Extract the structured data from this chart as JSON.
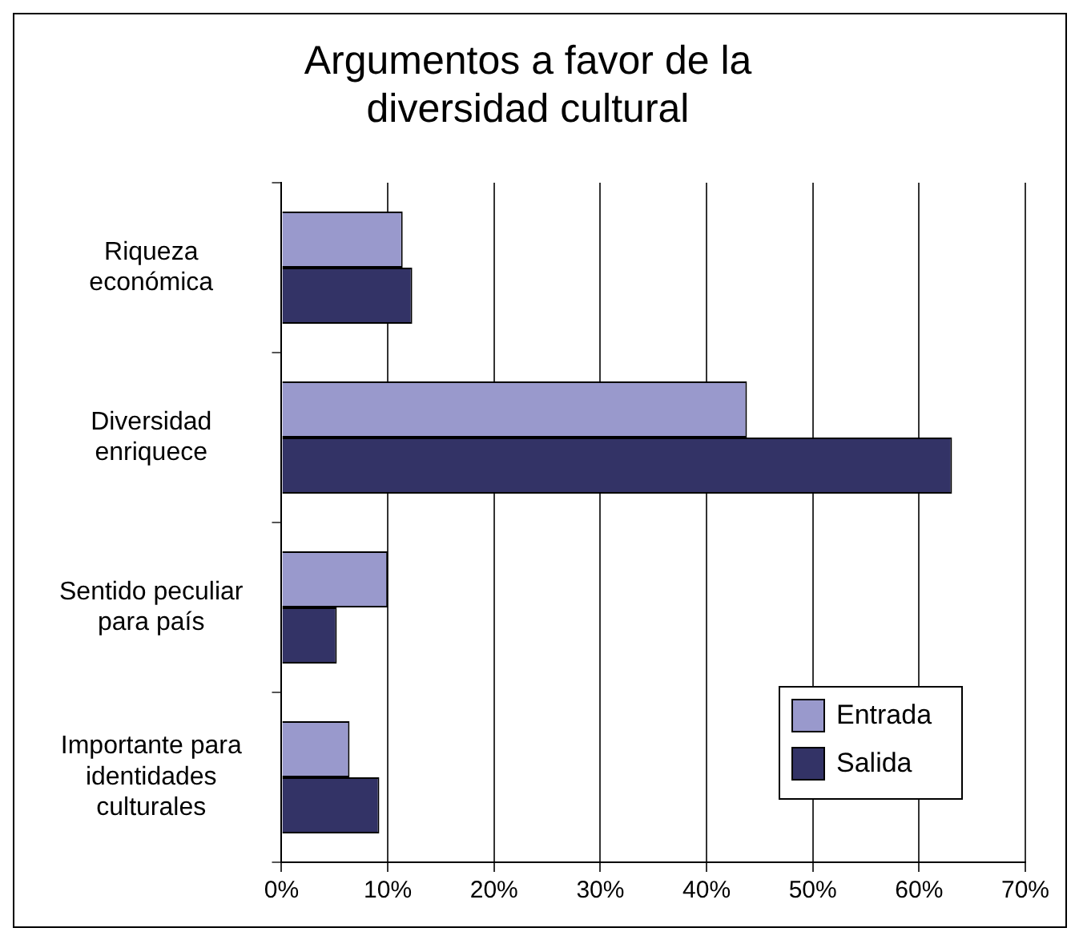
{
  "chart_data": {
    "type": "bar",
    "orientation": "horizontal",
    "title": "Argumentos a favor de la diversidad cultural",
    "categories": [
      "Riqueza económica",
      "Diversidad enriquece",
      "Sentido peculiar para país",
      "Importante para identidades culturales"
    ],
    "series": [
      {
        "name": "Entrada",
        "color": "#9999cc",
        "values": [
          11.4,
          43.8,
          10.0,
          6.4
        ]
      },
      {
        "name": "Salida",
        "color": "#333366",
        "values": [
          12.3,
          63.1,
          5.2,
          9.2
        ]
      }
    ],
    "xlim": [
      0,
      70
    ],
    "xticks": [
      {
        "value": 0,
        "label": "0%"
      },
      {
        "value": 10,
        "label": "10%"
      },
      {
        "value": 20,
        "label": "20%"
      },
      {
        "value": 30,
        "label": "30%"
      },
      {
        "value": 40,
        "label": "40%"
      },
      {
        "value": 50,
        "label": "50%"
      },
      {
        "value": 60,
        "label": "60%"
      },
      {
        "value": 70,
        "label": "70%"
      }
    ],
    "grid": "x",
    "legend": "bottom right"
  }
}
